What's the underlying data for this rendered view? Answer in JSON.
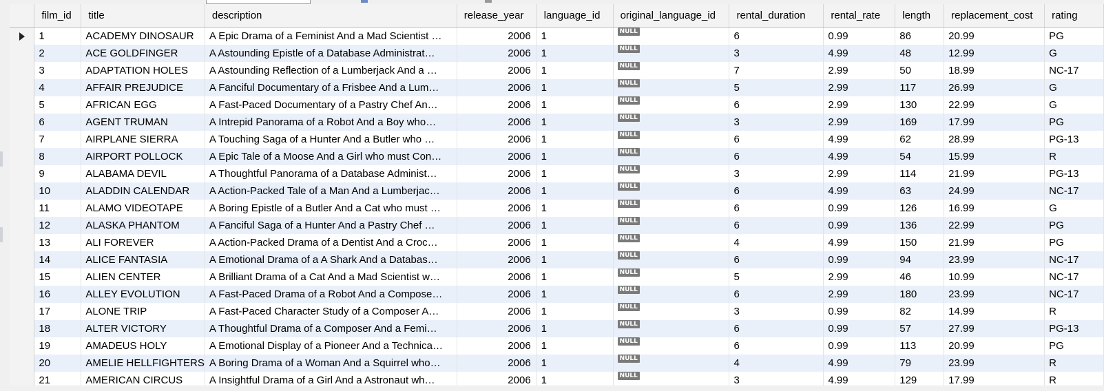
{
  "columns": [
    "film_id",
    "title",
    "description",
    "release_year",
    "language_id",
    "original_language_id",
    "rental_duration",
    "rental_rate",
    "length",
    "replacement_cost",
    "rating"
  ],
  "null_label": "NULL",
  "current_row_indicator": "current-row-pointer-icon",
  "rows": [
    {
      "film_id": "1",
      "title": "ACADEMY DINOSAUR",
      "description": "A Epic Drama of a Feminist And a Mad Scientist …",
      "release_year": "2006",
      "language_id": "1",
      "rental_duration": "6",
      "rental_rate": "0.99",
      "length": "86",
      "replacement_cost": "20.99",
      "rating": "PG"
    },
    {
      "film_id": "2",
      "title": "ACE GOLDFINGER",
      "description": "A Astounding Epistle of a Database Administrat…",
      "release_year": "2006",
      "language_id": "1",
      "rental_duration": "3",
      "rental_rate": "4.99",
      "length": "48",
      "replacement_cost": "12.99",
      "rating": "G"
    },
    {
      "film_id": "3",
      "title": "ADAPTATION HOLES",
      "description": "A Astounding Reflection of a Lumberjack And a …",
      "release_year": "2006",
      "language_id": "1",
      "rental_duration": "7",
      "rental_rate": "2.99",
      "length": "50",
      "replacement_cost": "18.99",
      "rating": "NC-17"
    },
    {
      "film_id": "4",
      "title": "AFFAIR PREJUDICE",
      "description": "A Fanciful Documentary of a Frisbee And a Lum…",
      "release_year": "2006",
      "language_id": "1",
      "rental_duration": "5",
      "rental_rate": "2.99",
      "length": "117",
      "replacement_cost": "26.99",
      "rating": "G"
    },
    {
      "film_id": "5",
      "title": "AFRICAN EGG",
      "description": "A Fast-Paced Documentary of a Pastry Chef An…",
      "release_year": "2006",
      "language_id": "1",
      "rental_duration": "6",
      "rental_rate": "2.99",
      "length": "130",
      "replacement_cost": "22.99",
      "rating": "G"
    },
    {
      "film_id": "6",
      "title": "AGENT TRUMAN",
      "description": "A Intrepid Panorama of a Robot And a Boy who…",
      "release_year": "2006",
      "language_id": "1",
      "rental_duration": "3",
      "rental_rate": "2.99",
      "length": "169",
      "replacement_cost": "17.99",
      "rating": "PG"
    },
    {
      "film_id": "7",
      "title": "AIRPLANE SIERRA",
      "description": "A Touching Saga of a Hunter And a Butler who …",
      "release_year": "2006",
      "language_id": "1",
      "rental_duration": "6",
      "rental_rate": "4.99",
      "length": "62",
      "replacement_cost": "28.99",
      "rating": "PG-13"
    },
    {
      "film_id": "8",
      "title": "AIRPORT POLLOCK",
      "description": "A Epic Tale of a Moose And a Girl who must Con…",
      "release_year": "2006",
      "language_id": "1",
      "rental_duration": "6",
      "rental_rate": "4.99",
      "length": "54",
      "replacement_cost": "15.99",
      "rating": "R"
    },
    {
      "film_id": "9",
      "title": "ALABAMA DEVIL",
      "description": "A Thoughtful Panorama of a Database Administ…",
      "release_year": "2006",
      "language_id": "1",
      "rental_duration": "3",
      "rental_rate": "2.99",
      "length": "114",
      "replacement_cost": "21.99",
      "rating": "PG-13"
    },
    {
      "film_id": "10",
      "title": "ALADDIN CALENDAR",
      "description": "A Action-Packed Tale of a Man And a Lumberjac…",
      "release_year": "2006",
      "language_id": "1",
      "rental_duration": "6",
      "rental_rate": "4.99",
      "length": "63",
      "replacement_cost": "24.99",
      "rating": "NC-17"
    },
    {
      "film_id": "11",
      "title": "ALAMO VIDEOTAPE",
      "description": "A Boring Epistle of a Butler And a Cat who must …",
      "release_year": "2006",
      "language_id": "1",
      "rental_duration": "6",
      "rental_rate": "0.99",
      "length": "126",
      "replacement_cost": "16.99",
      "rating": "G"
    },
    {
      "film_id": "12",
      "title": "ALASKA PHANTOM",
      "description": "A Fanciful Saga of a Hunter And a Pastry Chef …",
      "release_year": "2006",
      "language_id": "1",
      "rental_duration": "6",
      "rental_rate": "0.99",
      "length": "136",
      "replacement_cost": "22.99",
      "rating": "PG"
    },
    {
      "film_id": "13",
      "title": "ALI FOREVER",
      "description": "A Action-Packed Drama of a Dentist And a Croc…",
      "release_year": "2006",
      "language_id": "1",
      "rental_duration": "4",
      "rental_rate": "4.99",
      "length": "150",
      "replacement_cost": "21.99",
      "rating": "PG"
    },
    {
      "film_id": "14",
      "title": "ALICE FANTASIA",
      "description": "A Emotional Drama of a A Shark And a Databas…",
      "release_year": "2006",
      "language_id": "1",
      "rental_duration": "6",
      "rental_rate": "0.99",
      "length": "94",
      "replacement_cost": "23.99",
      "rating": "NC-17"
    },
    {
      "film_id": "15",
      "title": "ALIEN CENTER",
      "description": "A Brilliant Drama of a Cat And a Mad Scientist w…",
      "release_year": "2006",
      "language_id": "1",
      "rental_duration": "5",
      "rental_rate": "2.99",
      "length": "46",
      "replacement_cost": "10.99",
      "rating": "NC-17"
    },
    {
      "film_id": "16",
      "title": "ALLEY EVOLUTION",
      "description": "A Fast-Paced Drama of a Robot And a Compose…",
      "release_year": "2006",
      "language_id": "1",
      "rental_duration": "6",
      "rental_rate": "2.99",
      "length": "180",
      "replacement_cost": "23.99",
      "rating": "NC-17"
    },
    {
      "film_id": "17",
      "title": "ALONE TRIP",
      "description": "A Fast-Paced Character Study of a Composer A…",
      "release_year": "2006",
      "language_id": "1",
      "rental_duration": "3",
      "rental_rate": "0.99",
      "length": "82",
      "replacement_cost": "14.99",
      "rating": "R"
    },
    {
      "film_id": "18",
      "title": "ALTER VICTORY",
      "description": "A Thoughtful Drama of a Composer And a Femi…",
      "release_year": "2006",
      "language_id": "1",
      "rental_duration": "6",
      "rental_rate": "0.99",
      "length": "57",
      "replacement_cost": "27.99",
      "rating": "PG-13"
    },
    {
      "film_id": "19",
      "title": "AMADEUS HOLY",
      "description": "A Emotional Display of a Pioneer And a Technica…",
      "release_year": "2006",
      "language_id": "1",
      "rental_duration": "6",
      "rental_rate": "0.99",
      "length": "113",
      "replacement_cost": "20.99",
      "rating": "PG"
    },
    {
      "film_id": "20",
      "title": "AMELIE HELLFIGHTERS",
      "description": "A Boring Drama of a Woman And a Squirrel who…",
      "release_year": "2006",
      "language_id": "1",
      "rental_duration": "4",
      "rental_rate": "4.99",
      "length": "79",
      "replacement_cost": "23.99",
      "rating": "R"
    },
    {
      "film_id": "21",
      "title": "AMERICAN CIRCUS",
      "description": "A Insightful Drama of a Girl And a Astronaut wh…",
      "release_year": "2006",
      "language_id": "1",
      "rental_duration": "3",
      "rental_rate": "4.99",
      "length": "129",
      "replacement_cost": "17.99",
      "rating": "R"
    }
  ]
}
